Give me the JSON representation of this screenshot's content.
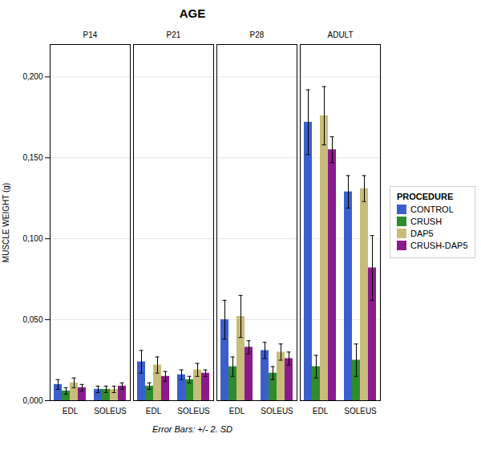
{
  "chart_data": {
    "type": "bar",
    "title": "AGE",
    "ylabel": "MUSCLE WEIGHT (g)",
    "caption": "Error Bars: +/- 2. SD",
    "facets": [
      "P14",
      "P21",
      "P28",
      "ADULT"
    ],
    "categories": [
      "EDL",
      "SOLEUS"
    ],
    "series": [
      {
        "name": "CONTROL",
        "color": "#3a5fcd",
        "values": [
          [
            0.01,
            0.007
          ],
          [
            0.024,
            0.016
          ],
          [
            0.05,
            0.031
          ],
          [
            0.172,
            0.129
          ]
        ],
        "errors": [
          [
            0.003,
            0.002
          ],
          [
            0.007,
            0.003
          ],
          [
            0.012,
            0.005
          ],
          [
            0.02,
            0.01
          ]
        ]
      },
      {
        "name": "CRUSH",
        "color": "#2e8b2e",
        "values": [
          [
            0.006,
            0.007
          ],
          [
            0.009,
            0.013
          ],
          [
            0.021,
            0.017
          ],
          [
            0.021,
            0.025
          ]
        ],
        "errors": [
          [
            0.002,
            0.002
          ],
          [
            0.002,
            0.002
          ],
          [
            0.006,
            0.004
          ],
          [
            0.007,
            0.01
          ]
        ]
      },
      {
        "name": "DAP5",
        "color": "#c8bc7a",
        "values": [
          [
            0.011,
            0.007
          ],
          [
            0.022,
            0.019
          ],
          [
            0.052,
            0.03
          ],
          [
            0.176,
            0.131
          ]
        ],
        "errors": [
          [
            0.003,
            0.002
          ],
          [
            0.005,
            0.004
          ],
          [
            0.013,
            0.005
          ],
          [
            0.018,
            0.008
          ]
        ]
      },
      {
        "name": "CRUSH-DAP5",
        "color": "#8b1a8b",
        "values": [
          [
            0.008,
            0.009
          ],
          [
            0.015,
            0.017
          ],
          [
            0.033,
            0.026
          ],
          [
            0.155,
            0.082
          ]
        ],
        "errors": [
          [
            0.002,
            0.002
          ],
          [
            0.003,
            0.002
          ],
          [
            0.004,
            0.004
          ],
          [
            0.008,
            0.02
          ]
        ]
      }
    ],
    "ylim": [
      0.0,
      0.22
    ],
    "yticks": [
      {
        "value": 0.0,
        "label": "0,000"
      },
      {
        "value": 0.05,
        "label": "0,050"
      },
      {
        "value": 0.1,
        "label": "0,100"
      },
      {
        "value": 0.15,
        "label": "0,150"
      },
      {
        "value": 0.2,
        "label": "0,200"
      }
    ],
    "grid": true,
    "legend": "right",
    "legend_title": "PROCEDURE"
  }
}
